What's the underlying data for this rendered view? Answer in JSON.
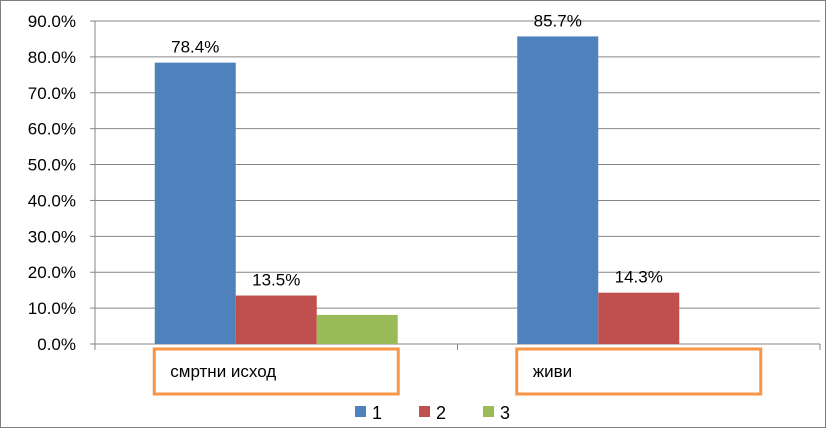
{
  "chart_data": {
    "type": "bar",
    "categories": [
      "смртни исход",
      "живи"
    ],
    "series": [
      {
        "name": "1",
        "values": [
          78.4,
          85.7
        ],
        "labels": [
          "78.4%",
          "85.7%"
        ],
        "color": "#4F81BD"
      },
      {
        "name": "2",
        "values": [
          13.5,
          14.3
        ],
        "labels": [
          "13.5%",
          "14.3%"
        ],
        "color": "#C0504D"
      },
      {
        "name": "3",
        "values": [
          8.1,
          0
        ],
        "labels": [
          "",
          ""
        ],
        "color": "#9BBB59"
      }
    ],
    "y_ticks": [
      "0.0%",
      "10.0%",
      "20.0%",
      "30.0%",
      "40.0%",
      "50.0%",
      "60.0%",
      "70.0%",
      "80.0%",
      "90.0%"
    ],
    "ylim": [
      0,
      90
    ],
    "grid": true,
    "legend_position": "bottom",
    "category_box_color": "#F79646",
    "title": "",
    "xlabel": "",
    "ylabel": ""
  }
}
